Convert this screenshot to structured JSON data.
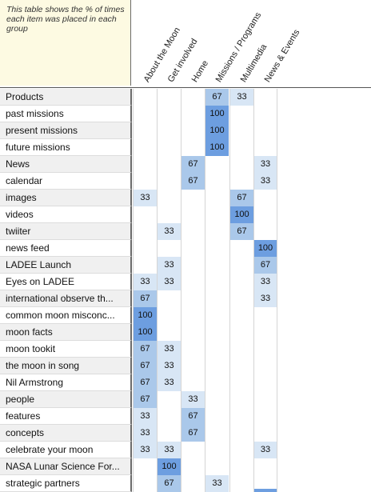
{
  "note": "This table shows the % of times each item was placed in each group",
  "columns": [
    "About the Moon",
    "Get involved",
    "Home",
    "Missions / Programs",
    "Multimedia",
    "News & Events"
  ],
  "rows": [
    {
      "label": "Products",
      "values": [
        null,
        null,
        null,
        67,
        33,
        null
      ]
    },
    {
      "label": "past missions",
      "values": [
        null,
        null,
        null,
        100,
        null,
        null
      ]
    },
    {
      "label": "present missions",
      "values": [
        null,
        null,
        null,
        100,
        null,
        null
      ]
    },
    {
      "label": "future missions",
      "values": [
        null,
        null,
        null,
        100,
        null,
        null
      ]
    },
    {
      "label": "News",
      "values": [
        null,
        null,
        67,
        null,
        null,
        33
      ]
    },
    {
      "label": "calendar",
      "values": [
        null,
        null,
        67,
        null,
        null,
        33
      ]
    },
    {
      "label": "images",
      "values": [
        33,
        null,
        null,
        null,
        67,
        null
      ]
    },
    {
      "label": "videos",
      "values": [
        null,
        null,
        null,
        null,
        100,
        null
      ]
    },
    {
      "label": "twiiter",
      "values": [
        null,
        33,
        null,
        null,
        67,
        null
      ]
    },
    {
      "label": "news feed",
      "values": [
        null,
        null,
        null,
        null,
        null,
        100
      ]
    },
    {
      "label": "LADEE Launch",
      "values": [
        null,
        33,
        null,
        null,
        null,
        67
      ]
    },
    {
      "label": "Eyes on LADEE",
      "values": [
        33,
        33,
        null,
        null,
        null,
        33
      ]
    },
    {
      "label": "international observe th...",
      "values": [
        67,
        null,
        null,
        null,
        null,
        33
      ]
    },
    {
      "label": "common moon misconc...",
      "values": [
        100,
        null,
        null,
        null,
        null,
        null
      ]
    },
    {
      "label": "moon facts",
      "values": [
        100,
        null,
        null,
        null,
        null,
        null
      ]
    },
    {
      "label": "moon tookit",
      "values": [
        67,
        33,
        null,
        null,
        null,
        null
      ]
    },
    {
      "label": "the moon in song",
      "values": [
        67,
        33,
        null,
        null,
        null,
        null
      ]
    },
    {
      "label": "Nil Armstrong",
      "values": [
        67,
        33,
        null,
        null,
        null,
        null
      ]
    },
    {
      "label": "people",
      "values": [
        67,
        null,
        33,
        null,
        null,
        null
      ]
    },
    {
      "label": "features",
      "values": [
        33,
        null,
        67,
        null,
        null,
        null
      ]
    },
    {
      "label": "concepts",
      "values": [
        33,
        null,
        67,
        null,
        null,
        null
      ]
    },
    {
      "label": "celebrate your moon",
      "values": [
        33,
        33,
        null,
        null,
        null,
        33
      ]
    },
    {
      "label": "NASA Lunar Science For...",
      "values": [
        null,
        100,
        null,
        null,
        null,
        null
      ]
    },
    {
      "label": "strategic partners",
      "values": [
        null,
        67,
        null,
        33,
        null,
        null
      ]
    }
  ],
  "colors": {
    "light": "#d8e6f5",
    "mid": "#aac8ea",
    "strong": "#6d9ee0",
    "note_bg": "#fdfae2"
  }
}
